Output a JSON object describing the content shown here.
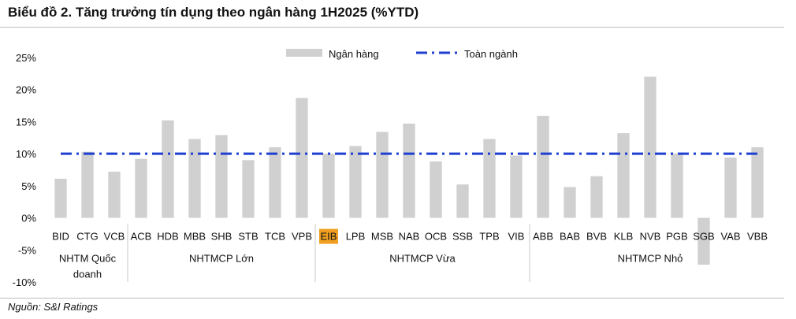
{
  "header": {
    "title": "Biểu đồ 2. Tăng trưởng tín dụng theo ngân hàng 1H2025 (%YTD)"
  },
  "footer": {
    "source": "Nguồn: S&I Ratings"
  },
  "chart_data": {
    "type": "bar",
    "title": "Biểu đồ 2. Tăng trưởng tín dụng theo ngân hàng 1H2025 (%YTD)",
    "xlabel": "",
    "ylabel": "",
    "categories": [
      "BID",
      "CTG",
      "VCB",
      "ACB",
      "HDB",
      "MBB",
      "SHB",
      "STB",
      "TCB",
      "VPB",
      "EIB",
      "LPB",
      "MSB",
      "NAB",
      "OCB",
      "SSB",
      "TPB",
      "VIB",
      "ABB",
      "BAB",
      "BVB",
      "KLB",
      "NVB",
      "PGB",
      "SGB",
      "VAB",
      "VBB"
    ],
    "series": [
      {
        "name": "Ngân hàng",
        "type": "bar",
        "color": "#d0d0d0",
        "values": [
          6.1,
          10.3,
          7.2,
          9.2,
          15.2,
          12.3,
          12.9,
          9.0,
          11.0,
          18.7,
          10.0,
          11.2,
          13.4,
          14.7,
          8.8,
          5.2,
          12.3,
          9.7,
          15.9,
          4.8,
          6.5,
          13.2,
          22.0,
          10.0,
          -7.3,
          9.4,
          11.0
        ]
      },
      {
        "name": "Toàn ngành",
        "type": "line",
        "style": "dash-dot",
        "color": "#1f3fd0",
        "values": [
          10,
          10,
          10,
          10,
          10,
          10,
          10,
          10,
          10,
          10,
          10,
          10,
          10,
          10,
          10,
          10,
          10,
          10,
          10,
          10,
          10,
          10,
          10,
          10,
          10,
          10,
          10
        ]
      }
    ],
    "ylim": [
      -10,
      25
    ],
    "yticks": [
      -10,
      -5,
      0,
      5,
      10,
      15,
      20,
      25
    ],
    "ytick_labels": [
      "-10%",
      "-5%",
      "0%",
      "5%",
      "10%",
      "15%",
      "20%",
      "25%"
    ],
    "groups": [
      {
        "label_lines": [
          "NHTM Quốc",
          "doanh"
        ],
        "from": 0,
        "to": 2
      },
      {
        "label_lines": [
          "NHTMCP Lớn"
        ],
        "from": 3,
        "to": 9
      },
      {
        "label_lines": [
          "NHTMCP Vừa"
        ],
        "from": 10,
        "to": 17
      },
      {
        "label_lines": [
          "NHTMCP Nhỏ"
        ],
        "from": 18,
        "to": 26
      }
    ],
    "highlight": {
      "category": "EIB",
      "color": "#f0a020"
    },
    "legend": {
      "position": "top-center"
    },
    "grid": false
  }
}
